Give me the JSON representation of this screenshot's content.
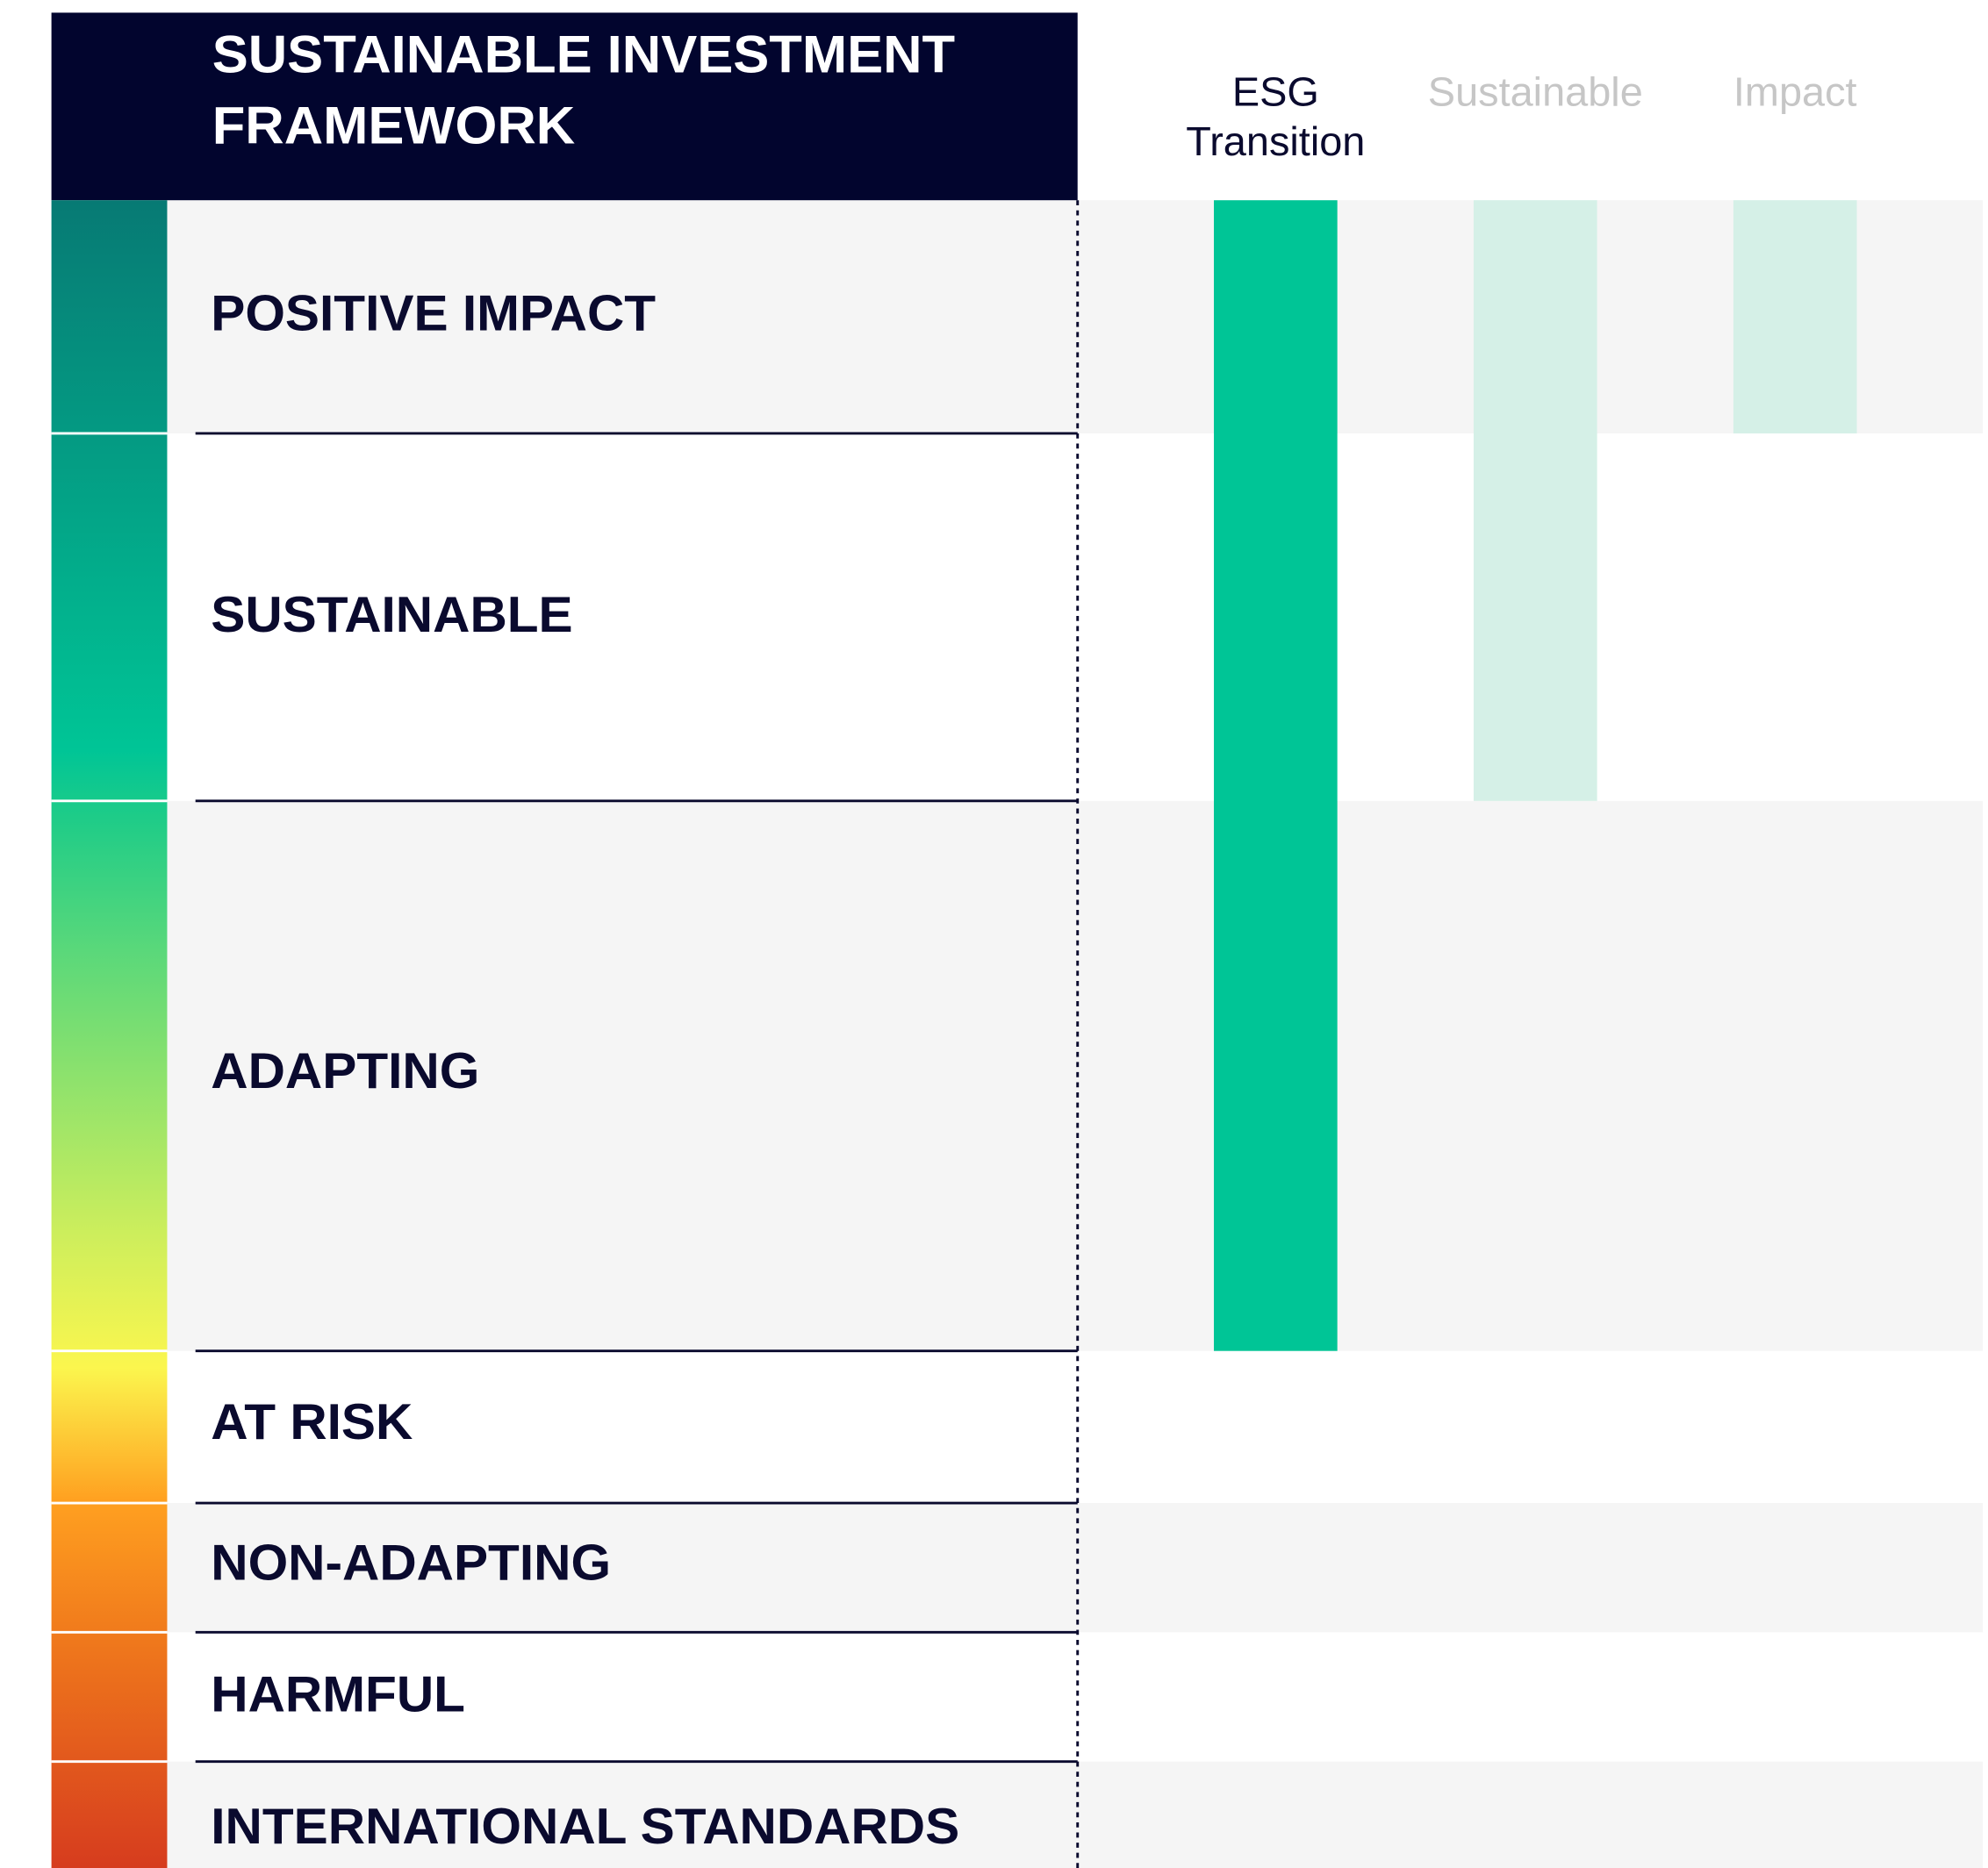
{
  "header": {
    "title": [
      "SUSTAINABLE INVESTMENT",
      "FRAMEWORK"
    ]
  },
  "columns": [
    [
      "ESG",
      "Transition"
    ],
    [
      "Sustainable"
    ],
    [
      "Impact"
    ]
  ],
  "rows": [
    "POSITIVE IMPACT",
    "SUSTAINABLE",
    "ADAPTING",
    "AT RISK",
    "NON-ADAPTING",
    "HARMFUL",
    "INTERNATIONAL STANDARDS"
  ]
}
